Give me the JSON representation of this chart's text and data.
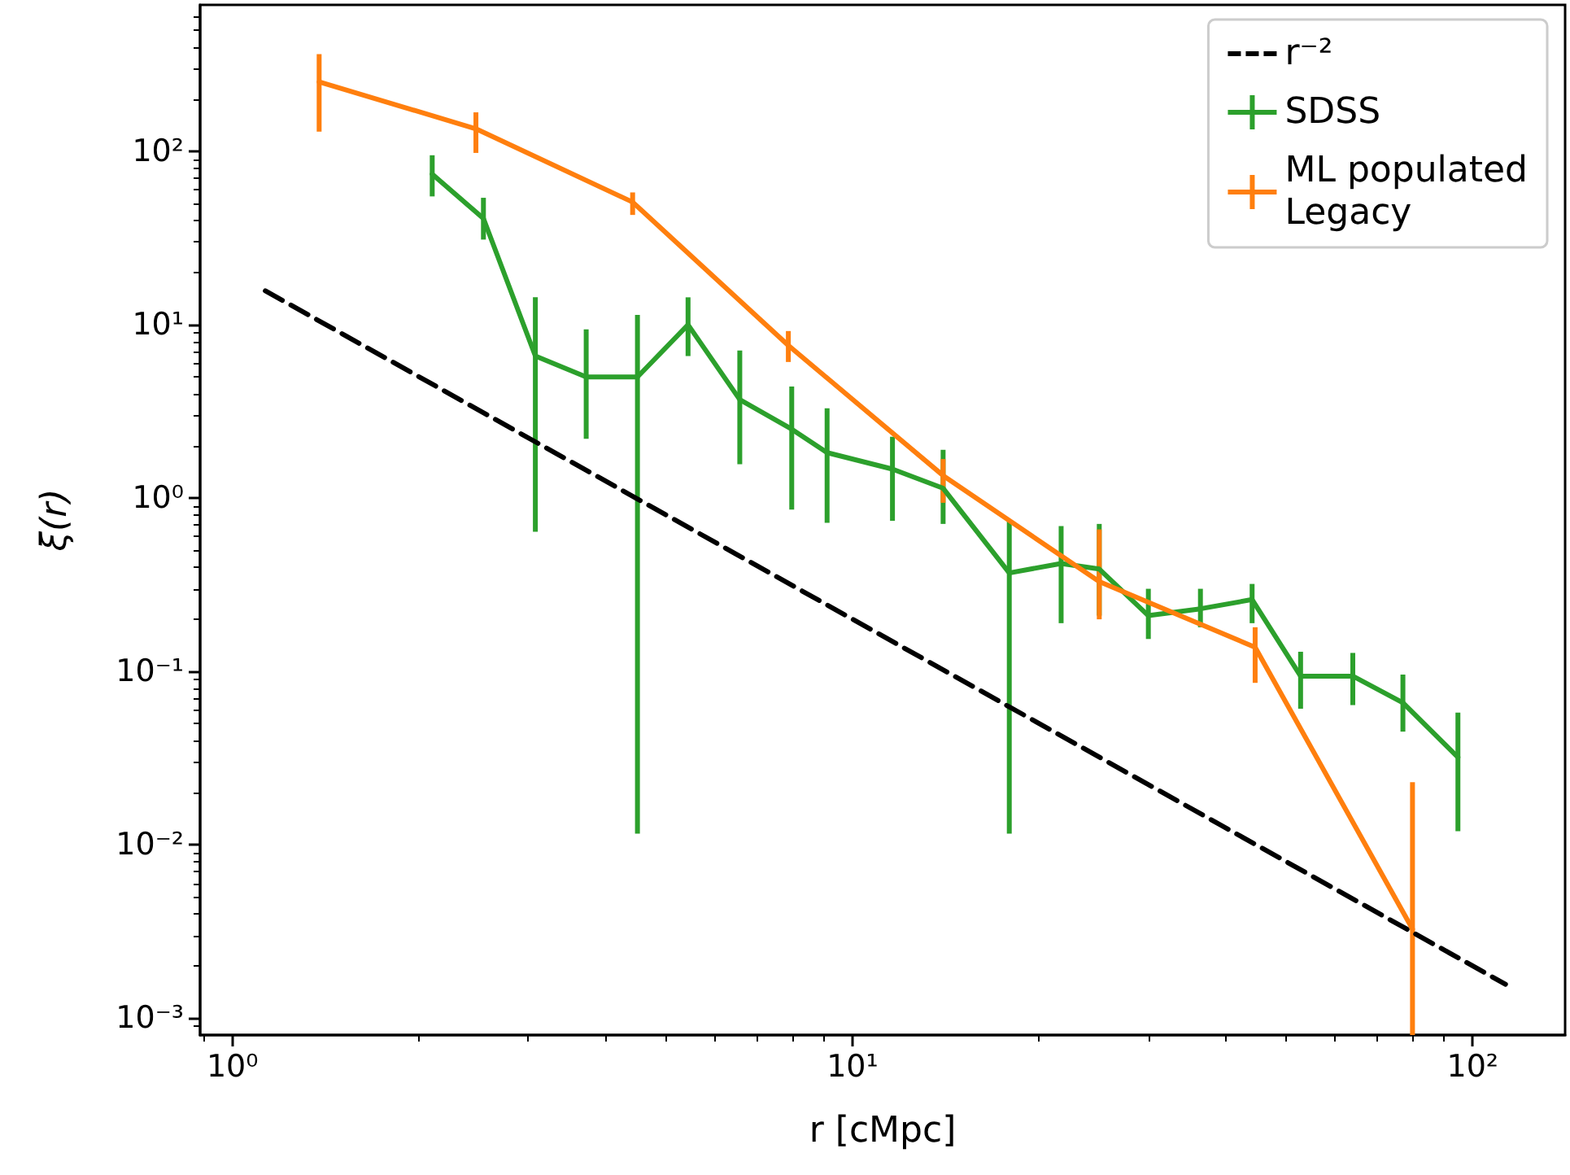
{
  "chart_data": {
    "type": "line",
    "xlabel": "r [cMpc]",
    "ylabel": "ξ(r)",
    "log": "xy",
    "grid": false,
    "legend": "top right",
    "marker": "none",
    "xlim": [
      0.887,
      141
    ],
    "ylim": [
      0.0008,
      700
    ],
    "xticks": [
      {
        "value": 1,
        "label": "10⁰"
      },
      {
        "value": 10,
        "label": "10¹"
      },
      {
        "value": 100,
        "label": "10²"
      }
    ],
    "yticks": [
      {
        "value": 0.001,
        "label": "10⁻³"
      },
      {
        "value": 0.01,
        "label": "10⁻²"
      },
      {
        "value": 0.1,
        "label": "10⁻¹"
      },
      {
        "value": 1,
        "label": "10⁰"
      },
      {
        "value": 10,
        "label": "10¹"
      },
      {
        "value": 100,
        "label": "10²"
      }
    ],
    "series": [
      {
        "name": "r⁻²",
        "color": "#000000",
        "line_style": "dashed",
        "x": [
          1.13,
          113
        ],
        "values": [
          15.7,
          0.00157
        ]
      },
      {
        "name": "SDSS",
        "color": "#2ca02c",
        "line_style": "solid",
        "x": [
          2.1,
          2.54,
          3.08,
          3.72,
          4.5,
          5.43,
          6.58,
          7.98,
          9.1,
          11.6,
          14.0,
          17.9,
          21.7,
          25.0,
          30.0,
          36.4,
          44.1,
          52.8,
          64.1,
          77.2,
          94.7
        ],
        "values": [
          74,
          41,
          6.6,
          5.0,
          5.0,
          10,
          3.7,
          2.5,
          1.83,
          1.47,
          1.14,
          0.37,
          0.42,
          0.39,
          0.21,
          0.23,
          0.26,
          0.094,
          0.094,
          0.066,
          0.032
        ],
        "errors": [
          [
            55,
            95
          ],
          [
            31,
            54
          ],
          [
            0.64,
            14.4
          ],
          [
            2.2,
            9.4
          ],
          [
            0.0116,
            11.4
          ],
          [
            6.6,
            14.4
          ],
          [
            1.57,
            7.1
          ],
          [
            0.86,
            4.4
          ],
          [
            0.72,
            3.3
          ],
          [
            0.74,
            2.26
          ],
          [
            0.71,
            1.9
          ],
          [
            0.0116,
            0.74
          ],
          [
            0.19,
            0.69
          ],
          [
            0.21,
            0.71
          ],
          [
            0.154,
            0.3
          ],
          [
            0.18,
            0.3
          ],
          [
            0.19,
            0.32
          ],
          [
            0.061,
            0.13
          ],
          [
            0.064,
            0.128
          ],
          [
            0.045,
            0.096
          ],
          [
            0.012,
            0.058
          ]
        ]
      },
      {
        "name": "ML populated\nLegacy",
        "color": "#ff7f0e",
        "line_style": "solid",
        "x": [
          1.38,
          2.47,
          4.42,
          7.88,
          14.0,
          25.0,
          44.6,
          80
        ],
        "values": [
          252,
          135,
          51,
          7.6,
          1.35,
          0.33,
          0.138,
          0.00327
        ],
        "errors": [
          [
            130,
            364
          ],
          [
            98,
            168
          ],
          [
            43,
            58
          ],
          [
            6.1,
            9.2
          ],
          [
            0.94,
            1.68
          ],
          [
            0.2,
            0.66
          ],
          [
            0.086,
            0.18
          ],
          [
            0.0008,
            0.023
          ]
        ]
      }
    ]
  }
}
